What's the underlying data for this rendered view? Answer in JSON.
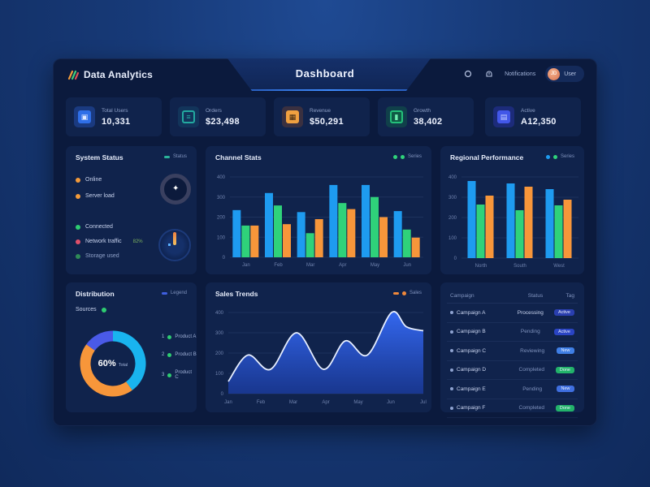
{
  "header": {
    "brand_name": "Data Analytics",
    "title": "Dashboard",
    "link_text": "Notifications",
    "user_initials": "JD",
    "user_name": "User"
  },
  "kpis": [
    {
      "label": "Total Users",
      "value": "10,331",
      "icon": "dashboard-icon",
      "color": "#2f6fe8"
    },
    {
      "label": "Orders",
      "value": "$23,498",
      "icon": "document-icon",
      "color": "#23a9a0"
    },
    {
      "label": "Revenue",
      "value": "$50,291",
      "icon": "grid-icon",
      "color": "#f0a040"
    },
    {
      "label": "Growth",
      "value": "38,402",
      "icon": "chart-icon",
      "color": "#24c07a"
    },
    {
      "label": "Active",
      "value": "A12,350",
      "icon": "report-icon",
      "color": "#4257e8"
    }
  ],
  "status_panel": {
    "title": "System Status",
    "legend": "Status",
    "items": [
      {
        "label": "Online",
        "color": "#f39a3a",
        "extra": ""
      },
      {
        "label": "Server load",
        "color": "#f39a3a",
        "extra": ""
      },
      {
        "label": "Connected",
        "color": "#2ecc71",
        "extra": ""
      },
      {
        "label": "Network traffic",
        "color": "#e0506a",
        "extra": "82%"
      },
      {
        "label": "Storage used",
        "color": "#2e8a57",
        "extra": ""
      }
    ]
  },
  "bar_panel_1": {
    "title": "Channel Stats",
    "legend": "Series"
  },
  "bar_panel_2": {
    "title": "Regional Performance",
    "legend": "Series"
  },
  "donut_panel": {
    "title": "Distribution",
    "legend": "Legend",
    "subtitle": "Sources",
    "center_value": "60%",
    "center_unit": "Total",
    "legend_items": [
      {
        "index": "1",
        "label": "Product A",
        "color": "#2ecc71"
      },
      {
        "index": "2",
        "label": "Product B",
        "color": "#2ecc71"
      },
      {
        "index": "3",
        "label": "Product C",
        "color": "#2ecc71"
      }
    ]
  },
  "area_panel": {
    "title": "Sales Trends",
    "legend": "Sales"
  },
  "table_panel": {
    "headers": [
      "Campaign",
      "Status",
      "Tag"
    ],
    "rows": [
      {
        "name": "Campaign A",
        "status": "Processing",
        "badge": "Active",
        "badge_color": "#2a3fb0"
      },
      {
        "name": "Campaign B",
        "status": "Pending",
        "badge": "Active",
        "badge_color": "#2a44c4"
      },
      {
        "name": "Campaign C",
        "status": "Reviewing",
        "badge": "New",
        "badge_color": "#3f7fe6"
      },
      {
        "name": "Campaign D",
        "status": "Completed",
        "badge": "Done",
        "badge_color": "#22b36a"
      },
      {
        "name": "Campaign E",
        "status": "Pending",
        "badge": "New",
        "badge_color": "#3f6fe0"
      },
      {
        "name": "Campaign F",
        "status": "Completed",
        "badge": "Done",
        "badge_color": "#22b36a"
      }
    ]
  },
  "colors": {
    "blue": "#1e9bf0",
    "green": "#2fd27a",
    "orange": "#f7963a",
    "area": "#2f63e8",
    "panel": "#10234c",
    "frame": "#0b1a3d"
  },
  "chart_data": [
    {
      "type": "bar",
      "title": "Channel Stats",
      "categories": [
        "Jan",
        "Feb",
        "Mar",
        "Apr",
        "May",
        "Jun"
      ],
      "yticks": [
        0,
        100,
        200,
        300,
        400
      ],
      "ylim": [
        0,
        400
      ],
      "series": [
        {
          "name": "Series 1",
          "color": "#1e9bf0",
          "values": [
            235,
            320,
            225,
            360,
            360,
            230
          ]
        },
        {
          "name": "Series 2",
          "color": "#2fd27a",
          "values": [
            158,
            258,
            120,
            270,
            300,
            138
          ]
        },
        {
          "name": "Series 3",
          "color": "#f7963a",
          "values": [
            158,
            165,
            190,
            240,
            200,
            98
          ]
        }
      ],
      "grid": true
    },
    {
      "type": "bar",
      "title": "Regional Performance",
      "categories": [
        "North",
        "South",
        "West"
      ],
      "yticks": [
        0,
        100,
        200,
        300,
        400
      ],
      "ylim": [
        0,
        400
      ],
      "series": [
        {
          "name": "Series 1",
          "color": "#1e9bf0",
          "values": [
            380,
            368,
            340
          ]
        },
        {
          "name": "Series 2",
          "color": "#2fd27a",
          "values": [
            264,
            236,
            260
          ]
        },
        {
          "name": "Series 3",
          "color": "#f7963a",
          "values": [
            308,
            352,
            288
          ]
        }
      ],
      "grid": true
    },
    {
      "type": "area",
      "title": "Sales Trends",
      "x": [
        "Jan",
        "Feb",
        "Mar",
        "Apr",
        "May",
        "Jun",
        "Jul"
      ],
      "yticks": [
        0,
        100,
        200,
        300,
        400
      ],
      "ylim": [
        0,
        400
      ],
      "points": [
        60,
        190,
        120,
        300,
        120,
        260,
        190,
        400,
        330,
        310
      ],
      "grid": true
    },
    {
      "type": "pie",
      "title": "Distribution",
      "donut": true,
      "slices": [
        {
          "label": "Product A",
          "value": 40,
          "color": "#19b4ef"
        },
        {
          "label": "Product B",
          "value": 45,
          "color": "#f7963a"
        },
        {
          "label": "Product C",
          "value": 15,
          "color": "#4a5ae8"
        }
      ]
    }
  ]
}
